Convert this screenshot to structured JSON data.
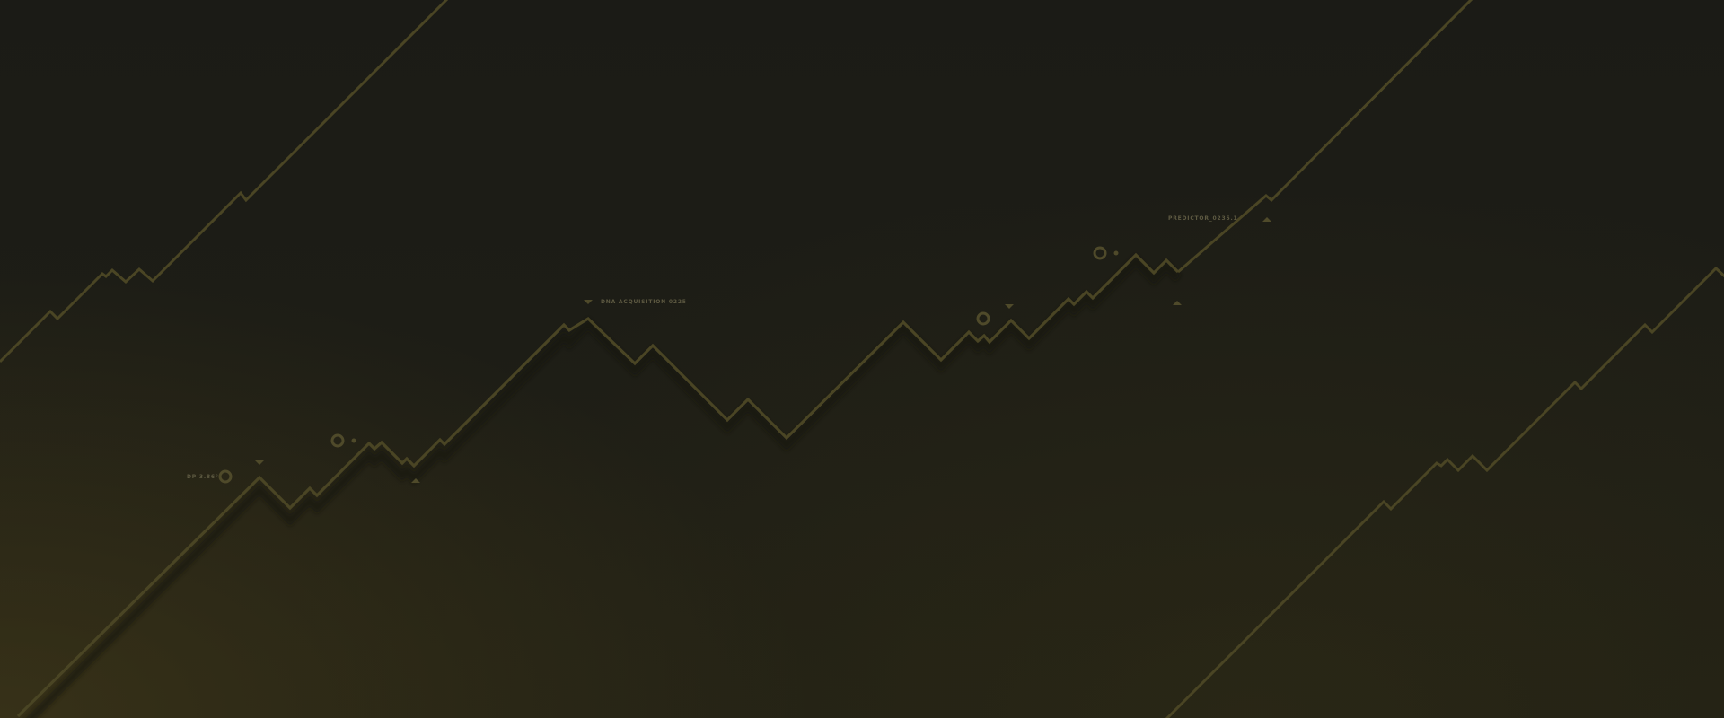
{
  "annotations": {
    "left": "DP 3.86°",
    "center": "DNA ACQUISITION 0225",
    "right": "PREDICTOR_0235.1"
  },
  "colors": {
    "background": "#1b1b16",
    "line": "#4a4524",
    "line_shadow": "#16150f",
    "marker": "#4f4a2a",
    "label_text": "#5e5a42"
  },
  "decorations": {
    "ring_markers": 4,
    "dot_markers": 2,
    "triangle_markers": 7
  }
}
